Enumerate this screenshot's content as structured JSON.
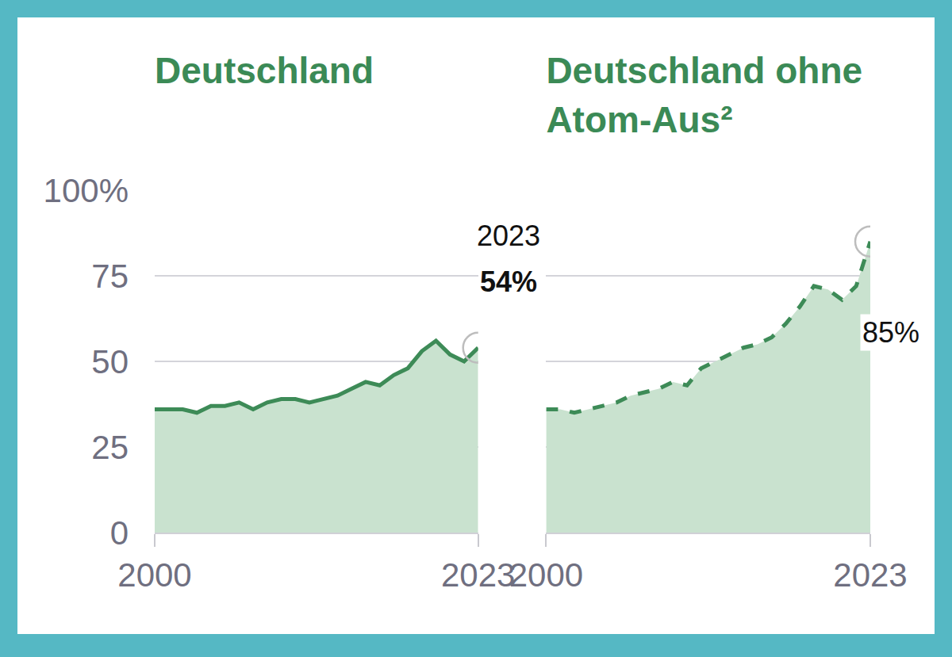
{
  "chart_data": [
    {
      "type": "area",
      "title": "Deutschland",
      "x": [
        2000,
        2001,
        2002,
        2003,
        2004,
        2005,
        2006,
        2007,
        2008,
        2009,
        2010,
        2011,
        2012,
        2013,
        2014,
        2015,
        2016,
        2017,
        2018,
        2019,
        2020,
        2021,
        2022,
        2023
      ],
      "values": [
        36,
        36,
        36,
        35,
        37,
        37,
        38,
        36,
        38,
        39,
        39,
        38,
        39,
        40,
        42,
        44,
        43,
        46,
        48,
        53,
        56,
        52,
        50,
        54
      ],
      "color": "#3d8b57",
      "line_style": "solid",
      "xlim": [
        2000,
        2023
      ],
      "xticks": [
        2000,
        2023
      ],
      "ylim": [
        0,
        100
      ],
      "yticks": [
        0,
        25,
        50,
        75,
        {
          "value": 100,
          "label": "100%"
        }
      ],
      "grid": true,
      "annotations": [
        {
          "x": 2023,
          "y": 54,
          "text": "2023"
        },
        {
          "x": 2023,
          "y": 54,
          "text": "54%"
        }
      ]
    },
    {
      "type": "area",
      "title": "Deutschland ohne Atom-Aus²",
      "x": [
        2000,
        2001,
        2002,
        2003,
        2004,
        2005,
        2006,
        2007,
        2008,
        2009,
        2010,
        2011,
        2012,
        2013,
        2014,
        2015,
        2016,
        2017,
        2018,
        2019,
        2020,
        2021,
        2022,
        2023
      ],
      "values": [
        36,
        36,
        35,
        36,
        37,
        38,
        40,
        41,
        42,
        44,
        43,
        48,
        50,
        52,
        54,
        55,
        57,
        61,
        66,
        72,
        71,
        68,
        72,
        85
      ],
      "color": "#3d8b57",
      "line_style": "dashed",
      "xlim": [
        2000,
        2023
      ],
      "xticks": [
        2000,
        2023
      ],
      "ylim": [
        0,
        100
      ],
      "yticks": [
        0,
        25,
        50,
        75,
        {
          "value": 100,
          "label": "100%"
        }
      ],
      "grid": true,
      "tick_labels": "x",
      "annotations": [
        {
          "x": 2023,
          "y": 85,
          "text": "85%"
        }
      ]
    }
  ]
}
